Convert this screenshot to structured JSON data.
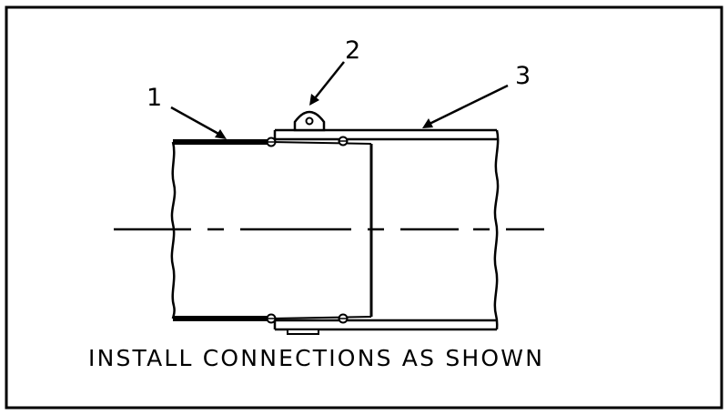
{
  "callouts": {
    "one": "1",
    "two": "2",
    "three": "3"
  },
  "caption": "INSTALL CONNECTIONS AS SHOWN",
  "colors": {
    "ink": "#000000",
    "paper": "#ffffff"
  }
}
